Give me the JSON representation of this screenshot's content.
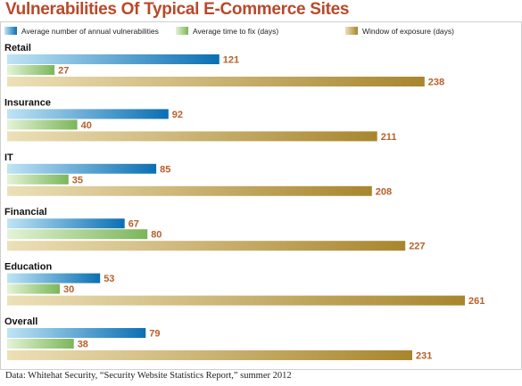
{
  "title": "Vulnerabilities Of Typical E-Commerce Sites",
  "source": "Data: Whitehat Security, “Security Website Statistics Report,” summer 2012",
  "colors": {
    "series_0": [
      "#0b6fb3",
      "#bfe4f5"
    ],
    "series_1": [
      "#7bb65a",
      "#e4f3d6"
    ],
    "series_2": [
      "#a8862e",
      "#ece0b8"
    ],
    "value_label": "#b8602b",
    "title": "#b8492a"
  },
  "chart_data": {
    "type": "bar",
    "orientation": "horizontal",
    "title": "Vulnerabilities Of Typical E-Commerce Sites",
    "categories": [
      "Retail",
      "Insurance",
      "IT",
      "Financial",
      "Education",
      "Overall"
    ],
    "series": [
      {
        "name": "Average number of annual vulnerabilities",
        "values": [
          121,
          92,
          85,
          67,
          53,
          79
        ]
      },
      {
        "name": "Average time to fix (days)",
        "values": [
          27,
          40,
          35,
          80,
          30,
          38
        ]
      },
      {
        "name": "Window of exposure (days)",
        "values": [
          238,
          211,
          208,
          227,
          261,
          231
        ]
      }
    ],
    "xlim": [
      0,
      261
    ],
    "grid": false,
    "legend": "top"
  }
}
